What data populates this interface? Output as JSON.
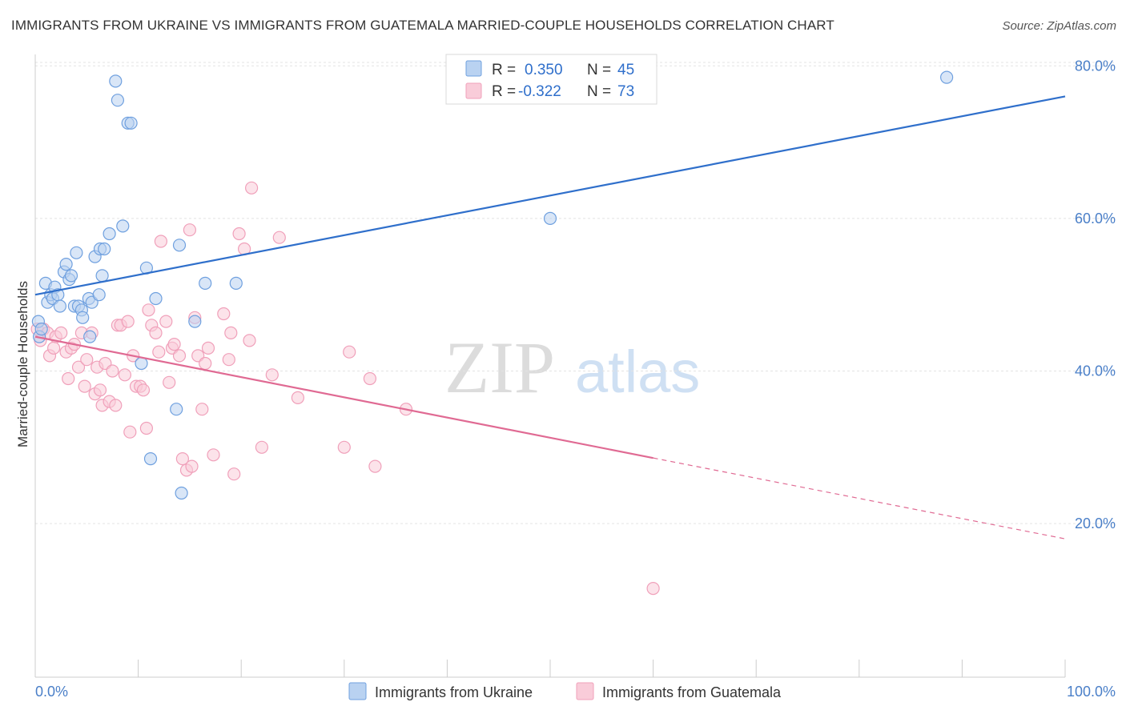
{
  "title": "IMMIGRANTS FROM UKRAINE VS IMMIGRANTS FROM GUATEMALA MARRIED-COUPLE HOUSEHOLDS CORRELATION CHART",
  "source": "Source: ZipAtlas.com",
  "watermark": {
    "zip": "ZIP",
    "atlas": "atlas"
  },
  "colors": {
    "ukraine": "#6fa0df",
    "ukraine_line": "#2f6fcb",
    "guatemala": "#f0a0ba",
    "guatemala_line": "#e06a93",
    "tick_text": "#4a7fc8"
  },
  "legend": {
    "rows": [
      {
        "r_label": "R =",
        "r_value": "0.350",
        "n_label": "N =",
        "n_value": "45"
      },
      {
        "r_label": "R =",
        "r_value": "-0.322",
        "n_label": "N =",
        "n_value": "73"
      }
    ]
  },
  "chart_data": {
    "type": "scatter",
    "title": "IMMIGRANTS FROM UKRAINE VS IMMIGRANTS FROM GUATEMALA MARRIED-COUPLE HOUSEHOLDS CORRELATION CHART",
    "xlabel": "",
    "ylabel": "Married-couple Households",
    "xlim": [
      0,
      100
    ],
    "ylim": [
      0,
      84
    ],
    "x_tick_labels": [
      "0.0%",
      "100.0%"
    ],
    "y_ticks": [
      20,
      40,
      60,
      80
    ],
    "y_tick_labels": [
      "20.0%",
      "40.0%",
      "60.0%",
      "80.0%"
    ],
    "grid": true,
    "legend_position": "top-center",
    "series": [
      {
        "name": "Immigrants from Ukraine",
        "r": 0.35,
        "n": 45,
        "trend": {
          "x": [
            0,
            100
          ],
          "y": [
            50.0,
            76.0
          ],
          "dashed_from": null
        },
        "points": [
          [
            0.3,
            46.5
          ],
          [
            0.4,
            44.5
          ],
          [
            0.6,
            45.5
          ],
          [
            1.0,
            51.5
          ],
          [
            1.2,
            49.0
          ],
          [
            1.5,
            50.0
          ],
          [
            1.7,
            49.5
          ],
          [
            1.9,
            51.0
          ],
          [
            2.2,
            50.0
          ],
          [
            2.4,
            48.5
          ],
          [
            2.8,
            53.0
          ],
          [
            3.0,
            54.0
          ],
          [
            3.3,
            52.0
          ],
          [
            3.5,
            52.5
          ],
          [
            3.8,
            48.5
          ],
          [
            4.0,
            55.5
          ],
          [
            4.2,
            48.5
          ],
          [
            4.5,
            48.0
          ],
          [
            4.6,
            47.0
          ],
          [
            5.2,
            49.5
          ],
          [
            5.3,
            44.5
          ],
          [
            5.5,
            49.0
          ],
          [
            5.8,
            55.0
          ],
          [
            6.2,
            50.0
          ],
          [
            6.3,
            56.0
          ],
          [
            6.5,
            52.5
          ],
          [
            6.7,
            56.0
          ],
          [
            7.2,
            58.0
          ],
          [
            7.8,
            78.0
          ],
          [
            8.0,
            75.5
          ],
          [
            8.5,
            59.0
          ],
          [
            9.0,
            72.5
          ],
          [
            9.3,
            72.5
          ],
          [
            10.3,
            41.0
          ],
          [
            10.8,
            53.5
          ],
          [
            11.2,
            28.5
          ],
          [
            11.7,
            49.5
          ],
          [
            13.7,
            35.0
          ],
          [
            14.0,
            56.5
          ],
          [
            14.2,
            24.0
          ],
          [
            15.5,
            46.5
          ],
          [
            16.5,
            51.5
          ],
          [
            19.5,
            51.5
          ],
          [
            50.0,
            60.0
          ],
          [
            88.5,
            78.5
          ]
        ]
      },
      {
        "name": "Immigrants from Guatemala",
        "r": -0.322,
        "n": 73,
        "trend": {
          "x": [
            0,
            100
          ],
          "y": [
            44.5,
            18.0
          ],
          "dashed_from": 60
        },
        "points": [
          [
            0.2,
            45.5
          ],
          [
            0.5,
            44.0
          ],
          [
            0.8,
            45.5
          ],
          [
            1.2,
            45.0
          ],
          [
            1.4,
            42.0
          ],
          [
            1.8,
            43.0
          ],
          [
            2.0,
            44.5
          ],
          [
            2.5,
            45.0
          ],
          [
            3.0,
            42.5
          ],
          [
            3.2,
            39.0
          ],
          [
            3.5,
            43.0
          ],
          [
            3.8,
            43.5
          ],
          [
            4.2,
            40.5
          ],
          [
            4.5,
            45.0
          ],
          [
            4.8,
            38.0
          ],
          [
            5.0,
            41.5
          ],
          [
            5.5,
            45.0
          ],
          [
            5.8,
            37.0
          ],
          [
            6.0,
            40.5
          ],
          [
            6.3,
            37.5
          ],
          [
            6.5,
            35.5
          ],
          [
            6.8,
            41.0
          ],
          [
            7.2,
            36.0
          ],
          [
            7.5,
            40.0
          ],
          [
            7.8,
            35.5
          ],
          [
            8.0,
            46.0
          ],
          [
            8.3,
            46.0
          ],
          [
            8.7,
            39.5
          ],
          [
            9.0,
            46.5
          ],
          [
            9.2,
            32.0
          ],
          [
            9.5,
            42.0
          ],
          [
            9.8,
            38.0
          ],
          [
            10.2,
            38.0
          ],
          [
            10.5,
            37.5
          ],
          [
            10.8,
            32.5
          ],
          [
            11.0,
            48.0
          ],
          [
            11.3,
            46.0
          ],
          [
            11.7,
            45.0
          ],
          [
            12.0,
            42.5
          ],
          [
            12.2,
            57.0
          ],
          [
            12.7,
            46.5
          ],
          [
            13.0,
            38.5
          ],
          [
            13.3,
            43.0
          ],
          [
            13.5,
            43.5
          ],
          [
            14.0,
            42.0
          ],
          [
            14.3,
            28.5
          ],
          [
            14.7,
            27.0
          ],
          [
            15.0,
            58.5
          ],
          [
            15.2,
            27.5
          ],
          [
            15.5,
            47.0
          ],
          [
            15.8,
            42.0
          ],
          [
            16.2,
            35.0
          ],
          [
            16.5,
            41.0
          ],
          [
            16.8,
            43.0
          ],
          [
            17.3,
            29.0
          ],
          [
            18.3,
            47.5
          ],
          [
            18.8,
            41.5
          ],
          [
            19.0,
            45.0
          ],
          [
            19.3,
            26.5
          ],
          [
            19.8,
            58.0
          ],
          [
            20.3,
            56.0
          ],
          [
            20.8,
            44.0
          ],
          [
            21.0,
            64.0
          ],
          [
            22.0,
            30.0
          ],
          [
            23.0,
            39.5
          ],
          [
            23.7,
            57.5
          ],
          [
            25.5,
            36.5
          ],
          [
            30.0,
            30.0
          ],
          [
            30.5,
            42.5
          ],
          [
            32.5,
            39.0
          ],
          [
            33.0,
            27.5
          ],
          [
            36.0,
            35.0
          ],
          [
            60.0,
            11.5
          ]
        ]
      }
    ]
  }
}
